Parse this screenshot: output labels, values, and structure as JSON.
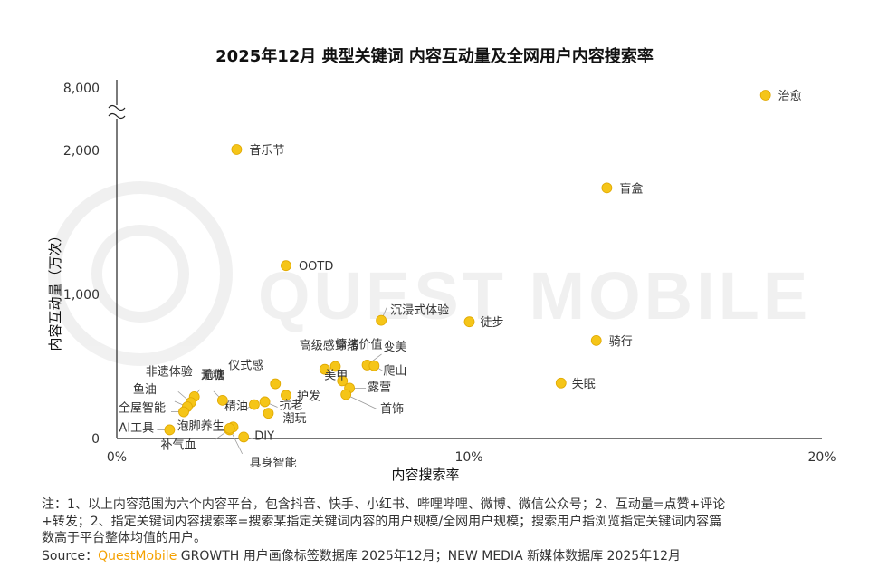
{
  "title": "2025年12月 典型关键词 内容互动量及全网用户内容搜索率",
  "watermark": "QUEST MOBILE",
  "footnote": {
    "line1": "注：1、以上内容范围为六个内容平台，包含抖音、快手、小红书、哔哩哔哩、微博、微信公众号；2、互动量=点赞+评论",
    "line2": "+转发；2、指定关键词内容搜索率=搜索某指定关键词内容的用户规模/全网用户规模；搜索用户指浏览指定关键词内容篇",
    "line3": "数高于平台整体均值的用户。",
    "source_label": "Source：",
    "source_brand": "QuestMobile",
    "source_rest": " GROWTH 用户画像标签数据库 2025年12月；NEW MEDIA 新媒体数据库 2025年12月"
  },
  "colors": {
    "point": "#f5c518",
    "point_edge": "#e0a800",
    "axis": "#222222",
    "label": "#333333"
  },
  "chart_data": {
    "type": "scatter",
    "title": "2025年12月 典型关键词 内容互动量及全网用户内容搜索率",
    "xlabel": "内容搜索率",
    "ylabel": "内容互动量（万次）",
    "xlim": [
      0,
      20
    ],
    "x_ticks": [
      "0%",
      "10%",
      "20%"
    ],
    "y_ticks": [
      "0",
      "1,000",
      "2,000",
      "8,000"
    ],
    "y_axis_break": true,
    "points": [
      {
        "label": "治愈",
        "x": 18.4,
        "y": 8000
      },
      {
        "label": "音乐节",
        "x": 3.4,
        "y": 2100
      },
      {
        "label": "盲盒",
        "x": 13.9,
        "y": 1740
      },
      {
        "label": "OOTD",
        "x": 4.8,
        "y": 1200
      },
      {
        "label": "沉浸式体验",
        "x": 7.5,
        "y": 820
      },
      {
        "label": "徒步",
        "x": 10.0,
        "y": 810
      },
      {
        "label": "骑行",
        "x": 13.6,
        "y": 680
      },
      {
        "label": "变美",
        "x": 7.1,
        "y": 510
      },
      {
        "label": "情绪价值",
        "x": 6.2,
        "y": 500
      },
      {
        "label": "爬山",
        "x": 7.3,
        "y": 505
      },
      {
        "label": "高级感穿搭",
        "x": 5.9,
        "y": 480
      },
      {
        "label": "失眠",
        "x": 12.6,
        "y": 385
      },
      {
        "label": "美甲",
        "x": 6.4,
        "y": 400
      },
      {
        "label": "露营",
        "x": 6.6,
        "y": 350
      },
      {
        "label": "首饰",
        "x": 6.5,
        "y": 305
      },
      {
        "label": "仪式感",
        "x": 4.5,
        "y": 380
      },
      {
        "label": "护发",
        "x": 4.8,
        "y": 300
      },
      {
        "label": "抗老",
        "x": 4.2,
        "y": 255
      },
      {
        "label": "精油",
        "x": 3.9,
        "y": 235
      },
      {
        "label": "潮玩",
        "x": 4.3,
        "y": 175
      },
      {
        "label": "无糖",
        "x": 3.0,
        "y": 265
      },
      {
        "label": "瑜伽",
        "x": 2.2,
        "y": 290
      },
      {
        "label": "非遗体验",
        "x": 2.1,
        "y": 250
      },
      {
        "label": "鱼油",
        "x": 2.0,
        "y": 220
      },
      {
        "label": "全屋智能",
        "x": 1.9,
        "y": 185
      },
      {
        "label": "AI工具",
        "x": 1.5,
        "y": 60
      },
      {
        "label": "泡脚养生",
        "x": 3.2,
        "y": 60
      },
      {
        "label": "补气血",
        "x": 3.3,
        "y": 80
      },
      {
        "label": "DIY",
        "x": 3.6,
        "y": 10
      },
      {
        "label": "具身智能",
        "x": 3.2,
        "y": 70
      }
    ]
  }
}
